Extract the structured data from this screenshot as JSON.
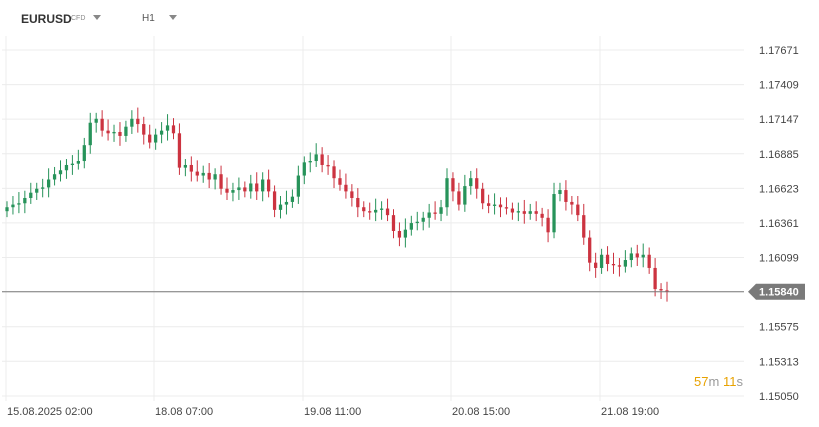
{
  "header": {
    "symbol": "EURUSD",
    "symbol_type": "CFD",
    "timeframe": "H1"
  },
  "countdown": {
    "minutes": "57",
    "minutes_unit": "m",
    "seconds": "11",
    "seconds_unit": "s"
  },
  "colors": {
    "up": "#27935a",
    "down": "#cc3340",
    "price_line": "#7a7a7a",
    "price_badge": "#7a7a7a",
    "grid": "#ececec",
    "countdown_accent": "#e8a200"
  },
  "chart_data": {
    "type": "candlestick",
    "symbol": "EURUSD",
    "interval": "H1",
    "current_price": 1.1584,
    "ylim": [
      1.1505,
      1.1785
    ],
    "y_ticks": [
      1.17671,
      1.17409,
      1.17147,
      1.16885,
      1.16623,
      1.16361,
      1.16099,
      1.1584,
      1.15575,
      1.15313,
      1.1505
    ],
    "x_tick_labels": [
      "15.08.2025  02:00",
      "18.08  07:00",
      "19.08  11:00",
      "20.08  15:00",
      "21.08  19:00"
    ],
    "grid": true,
    "close": [
      1.1648,
      1.165,
      1.1651,
      1.1655,
      1.1659,
      1.1662,
      1.1663,
      1.1669,
      1.1673,
      1.1676,
      1.168,
      1.1681,
      1.1683,
      1.1695,
      1.1712,
      1.1715,
      1.1706,
      1.1704,
      1.1705,
      1.1702,
      1.1709,
      1.1715,
      1.1711,
      1.1703,
      1.1697,
      1.1703,
      1.1706,
      1.171,
      1.1704,
      1.1678,
      1.168,
      1.1675,
      1.1672,
      1.1674,
      1.1669,
      1.1673,
      1.1662,
      1.1659,
      1.1661,
      1.1663,
      1.166,
      1.1666,
      1.166,
      1.1669,
      1.166,
      1.1646,
      1.165,
      1.1652,
      1.1656,
      1.1672,
      1.1682,
      1.1683,
      1.1688,
      1.168,
      1.1679,
      1.167,
      1.1665,
      1.166,
      1.1655,
      1.1648,
      1.1645,
      1.1644,
      1.1646,
      1.1647,
      1.1642,
      1.163,
      1.1625,
      1.1631,
      1.1636,
      1.1637,
      1.164,
      1.1644,
      1.1643,
      1.1648,
      1.167,
      1.166,
      1.165,
      1.1664,
      1.167,
      1.1662,
      1.1651,
      1.1649,
      1.165,
      1.1648,
      1.1647,
      1.1644,
      1.1645,
      1.1643,
      1.1645,
      1.1643,
      1.164,
      1.1629,
      1.1658,
      1.1661,
      1.1652,
      1.165,
      1.1642,
      1.1625,
      1.1606,
      1.1602,
      1.1612,
      1.1605,
      1.1604,
      1.1603,
      1.1608,
      1.1613,
      1.161,
      1.1612,
      1.1602,
      1.1586,
      1.1585,
      1.1584
    ]
  }
}
